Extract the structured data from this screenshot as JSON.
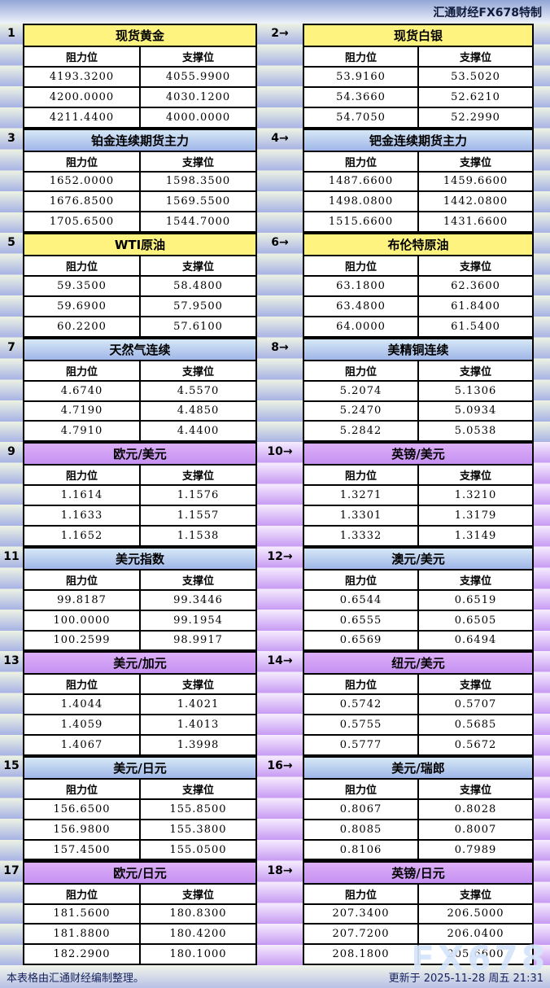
{
  "banner": "汇通财经FX678特制",
  "labels": {
    "resistance": "阻力位",
    "support": "支撑位"
  },
  "footer": {
    "left": "本表格由汇通财经编制整理。",
    "right": "更新于 2025-11-28 周五 21:31"
  },
  "watermark": "FX678",
  "colors": {
    "header_yellow": "#fdf37e",
    "header_blue_top": "#d6e8f6",
    "header_blue_bottom": "#9fb6e8",
    "header_purple": "#cc97f3",
    "stripe_green_top": "#edf3e3",
    "stripe_blue_bottom": "#a7b2e5",
    "stripe_purple_bottom": "#c79bf3",
    "topbar_blue": "#93a6d6"
  },
  "sections": [
    {
      "left_index": "1",
      "right_index": "2→",
      "theme": "yellow",
      "spacer": "blue",
      "left": {
        "title": "现货黄金",
        "rows": [
          [
            "4193.3200",
            "4055.9900"
          ],
          [
            "4200.0000",
            "4030.1200"
          ],
          [
            "4211.4400",
            "4000.0000"
          ]
        ]
      },
      "right": {
        "title": "现货白银",
        "rows": [
          [
            "53.9160",
            "53.5020"
          ],
          [
            "54.3660",
            "52.6210"
          ],
          [
            "54.7050",
            "52.2990"
          ]
        ]
      }
    },
    {
      "left_index": "3",
      "right_index": "4→",
      "theme": "blue",
      "spacer": "blue",
      "left": {
        "title": "铂金连续期货主力",
        "rows": [
          [
            "1652.0000",
            "1598.3500"
          ],
          [
            "1676.8500",
            "1569.5500"
          ],
          [
            "1705.6500",
            "1544.7000"
          ]
        ]
      },
      "right": {
        "title": "钯金连续期货主力",
        "rows": [
          [
            "1487.6600",
            "1459.6600"
          ],
          [
            "1498.0800",
            "1442.0800"
          ],
          [
            "1515.6600",
            "1431.6600"
          ]
        ]
      }
    },
    {
      "left_index": "5",
      "right_index": "6→",
      "theme": "yellow",
      "spacer": "blue",
      "left": {
        "title": "WTI原油",
        "rows": [
          [
            "59.3500",
            "58.4800"
          ],
          [
            "59.6900",
            "57.9500"
          ],
          [
            "60.2200",
            "57.6100"
          ]
        ]
      },
      "right": {
        "title": "布伦特原油",
        "rows": [
          [
            "63.1800",
            "62.3600"
          ],
          [
            "63.4800",
            "61.8400"
          ],
          [
            "64.0000",
            "61.5400"
          ]
        ]
      }
    },
    {
      "left_index": "7",
      "right_index": "8→",
      "theme": "blue",
      "spacer": "blue",
      "left": {
        "title": "天然气连续",
        "rows": [
          [
            "4.6740",
            "4.5570"
          ],
          [
            "4.7190",
            "4.4850"
          ],
          [
            "4.7910",
            "4.4400"
          ]
        ]
      },
      "right": {
        "title": "美精铜连续",
        "rows": [
          [
            "5.2074",
            "5.1306"
          ],
          [
            "5.2470",
            "5.0934"
          ],
          [
            "5.2842",
            "5.0538"
          ]
        ]
      }
    },
    {
      "left_index": "9",
      "right_index": "10→",
      "theme": "purple",
      "spacer": "purple",
      "left": {
        "title": "欧元/美元",
        "rows": [
          [
            "1.1614",
            "1.1576"
          ],
          [
            "1.1633",
            "1.1557"
          ],
          [
            "1.1652",
            "1.1538"
          ]
        ]
      },
      "right": {
        "title": "英镑/美元",
        "rows": [
          [
            "1.3271",
            "1.3210"
          ],
          [
            "1.3301",
            "1.3179"
          ],
          [
            "1.3332",
            "1.3149"
          ]
        ]
      }
    },
    {
      "left_index": "11",
      "right_index": "12→",
      "theme": "blue",
      "spacer": "purple",
      "left": {
        "title": "美元指数",
        "rows": [
          [
            "99.8187",
            "99.3446"
          ],
          [
            "100.0000",
            "99.1954"
          ],
          [
            "100.2599",
            "98.9917"
          ]
        ]
      },
      "right": {
        "title": "澳元/美元",
        "rows": [
          [
            "0.6544",
            "0.6519"
          ],
          [
            "0.6555",
            "0.6505"
          ],
          [
            "0.6569",
            "0.6494"
          ]
        ]
      }
    },
    {
      "left_index": "13",
      "right_index": "14→",
      "theme": "purple",
      "spacer": "purple",
      "left": {
        "title": "美元/加元",
        "rows": [
          [
            "1.4044",
            "1.4021"
          ],
          [
            "1.4059",
            "1.4013"
          ],
          [
            "1.4067",
            "1.3998"
          ]
        ]
      },
      "right": {
        "title": "纽元/美元",
        "rows": [
          [
            "0.5742",
            "0.5707"
          ],
          [
            "0.5755",
            "0.5685"
          ],
          [
            "0.5777",
            "0.5672"
          ]
        ]
      }
    },
    {
      "left_index": "15",
      "right_index": "16→",
      "theme": "blue",
      "spacer": "purple",
      "left": {
        "title": "美元/日元",
        "rows": [
          [
            "156.6500",
            "155.8500"
          ],
          [
            "156.9800",
            "155.3800"
          ],
          [
            "157.4500",
            "155.0500"
          ]
        ]
      },
      "right": {
        "title": "美元/瑞郎",
        "rows": [
          [
            "0.8067",
            "0.8028"
          ],
          [
            "0.8085",
            "0.8007"
          ],
          [
            "0.8106",
            "0.7989"
          ]
        ]
      }
    },
    {
      "left_index": "17",
      "right_index": "18→",
      "theme": "purple",
      "spacer": "purple",
      "left": {
        "title": "欧元/日元",
        "rows": [
          [
            "181.5600",
            "180.8300"
          ],
          [
            "181.8800",
            "180.4200"
          ],
          [
            "182.2900",
            "180.1000"
          ]
        ]
      },
      "right": {
        "title": "英镑/日元",
        "rows": [
          [
            "207.3400",
            "206.5000"
          ],
          [
            "207.7200",
            "206.0400"
          ],
          [
            "208.1800",
            "205.6600"
          ]
        ]
      }
    }
  ]
}
